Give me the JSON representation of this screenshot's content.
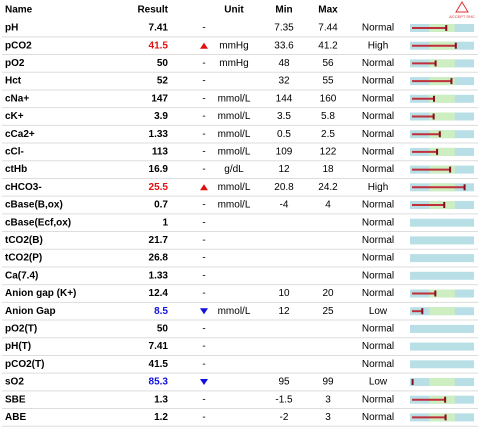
{
  "logo": "ACCEPT SHC",
  "header": {
    "name": "Name",
    "result": "Result",
    "unit": "Unit",
    "min": "Min",
    "max": "Max"
  },
  "table": {
    "rows": [
      {
        "name": "pH",
        "result": 7.41,
        "dash": "-",
        "min": 7.35,
        "max": 7.44,
        "status": "Normal"
      },
      {
        "name": "pCO2",
        "result": 41.5,
        "unit": "mmHg",
        "min": 33.6,
        "max": 41.2,
        "status": "High"
      },
      {
        "name": "pO2",
        "result": 50,
        "dash": "-",
        "unit": "mmHg",
        "min": 48,
        "max": 56,
        "status": "Normal"
      },
      {
        "name": "Hct",
        "result": 52,
        "dash": "-",
        "min": 32,
        "max": 55,
        "status": "Normal"
      },
      {
        "name": "cNa+",
        "result": 147,
        "dash": "-",
        "unit": "mmol/L",
        "min": 144,
        "max": 160,
        "status": "Normal"
      },
      {
        "name": "cK+",
        "result": 3.9,
        "dash": "-",
        "unit": "mmol/L",
        "min": 3.5,
        "max": 5.8,
        "status": "Normal"
      },
      {
        "name": "cCa2+",
        "result": 1.33,
        "dash": "-",
        "unit": "mmol/L",
        "min": 0.5,
        "max": 2.5,
        "status": "Normal"
      },
      {
        "name": "cCl-",
        "result": 113,
        "dash": "-",
        "unit": "mmol/L",
        "min": 109,
        "max": 122,
        "status": "Normal"
      },
      {
        "name": "ctHb",
        "result": 16.9,
        "dash": "-",
        "unit": "g/dL",
        "min": 12,
        "max": 18,
        "status": "Normal"
      },
      {
        "name": "cHCO3-",
        "result": 25.5,
        "unit": "mmol/L",
        "min": 20.8,
        "max": 24.2,
        "status": "High"
      },
      {
        "name": "cBase(B,ox)",
        "result": 0.7,
        "dash": "-",
        "unit": "mmol/L",
        "min": -4,
        "max": 4,
        "status": "Normal"
      },
      {
        "name": "cBase(Ecf,ox)",
        "result": 1,
        "dash": "-",
        "status": "Normal"
      },
      {
        "name": "tCO2(B)",
        "result": 21.7,
        "dash": "-",
        "status": "Normal"
      },
      {
        "name": "tCO2(P)",
        "result": 26.8,
        "dash": "-",
        "status": "Normal"
      },
      {
        "name": "Ca(7.4)",
        "result": 1.33,
        "dash": "-",
        "status": "Normal"
      },
      {
        "name": "Anion gap (K+)",
        "result": 12.4,
        "dash": "-",
        "min": 10,
        "max": 20,
        "status": "Normal"
      },
      {
        "name": "Anion Gap",
        "result": 8.5,
        "unit": "mmol/L",
        "min": 12,
        "max": 25,
        "status": "Low"
      },
      {
        "name": "pO2(T)",
        "result": 50,
        "dash": "-",
        "status": "Normal"
      },
      {
        "name": "pH(T)",
        "result": 7.41,
        "dash": "-",
        "status": "Normal"
      },
      {
        "name": "pCO2(T)",
        "result": 41.5,
        "dash": "-",
        "status": "Normal"
      },
      {
        "name": "sO2",
        "result": 85.3,
        "min": 95,
        "max": 99,
        "status": "Low"
      },
      {
        "name": "SBE",
        "result": 1.3,
        "dash": "-",
        "min": -1.5,
        "max": 3,
        "status": "Normal"
      },
      {
        "name": "ABE",
        "result": 1.2,
        "dash": "-",
        "min": -2,
        "max": 3,
        "status": "Normal"
      }
    ]
  }
}
